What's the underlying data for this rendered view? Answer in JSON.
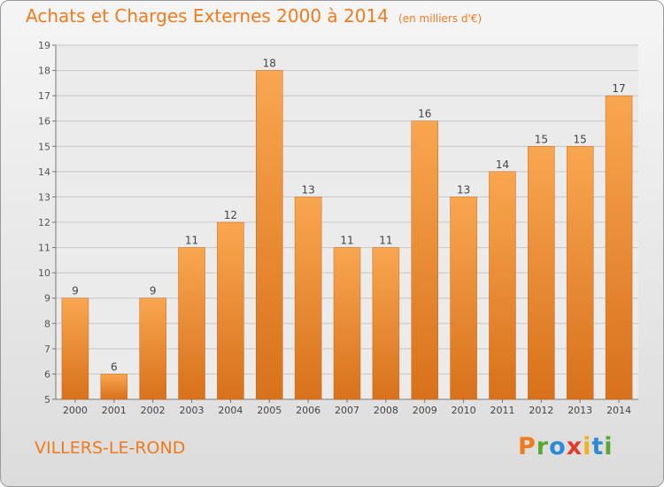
{
  "chart_data": {
    "type": "bar",
    "title": "Achats et Charges Externes 2000 à 2014",
    "unit_note": "(en milliers d'€)",
    "categories": [
      "2000",
      "2001",
      "2002",
      "2003",
      "2004",
      "2005",
      "2006",
      "2007",
      "2008",
      "2009",
      "2010",
      "2011",
      "2012",
      "2013",
      "2014"
    ],
    "values": [
      9,
      6,
      9,
      11,
      12,
      18,
      13,
      11,
      11,
      16,
      13,
      14,
      15,
      15,
      17
    ],
    "ylim": [
      5,
      19
    ],
    "yticks": [
      5,
      6,
      7,
      8,
      9,
      10,
      11,
      12,
      13,
      14,
      15,
      16,
      17,
      18,
      19
    ],
    "grid": true,
    "bar_color": "#f28c28",
    "text_color": "#f07b1e"
  },
  "footer": {
    "town": "VILLERS-LE-ROND",
    "logo_letters": [
      "P",
      "r",
      "o",
      "x",
      "i",
      "t",
      "i"
    ],
    "logo_colors": [
      "#f07b1e",
      "#5aa832",
      "#2a8ad4",
      "#e03b2a",
      "#f2b21c",
      "#2a8ad4",
      "#5aa832"
    ]
  }
}
